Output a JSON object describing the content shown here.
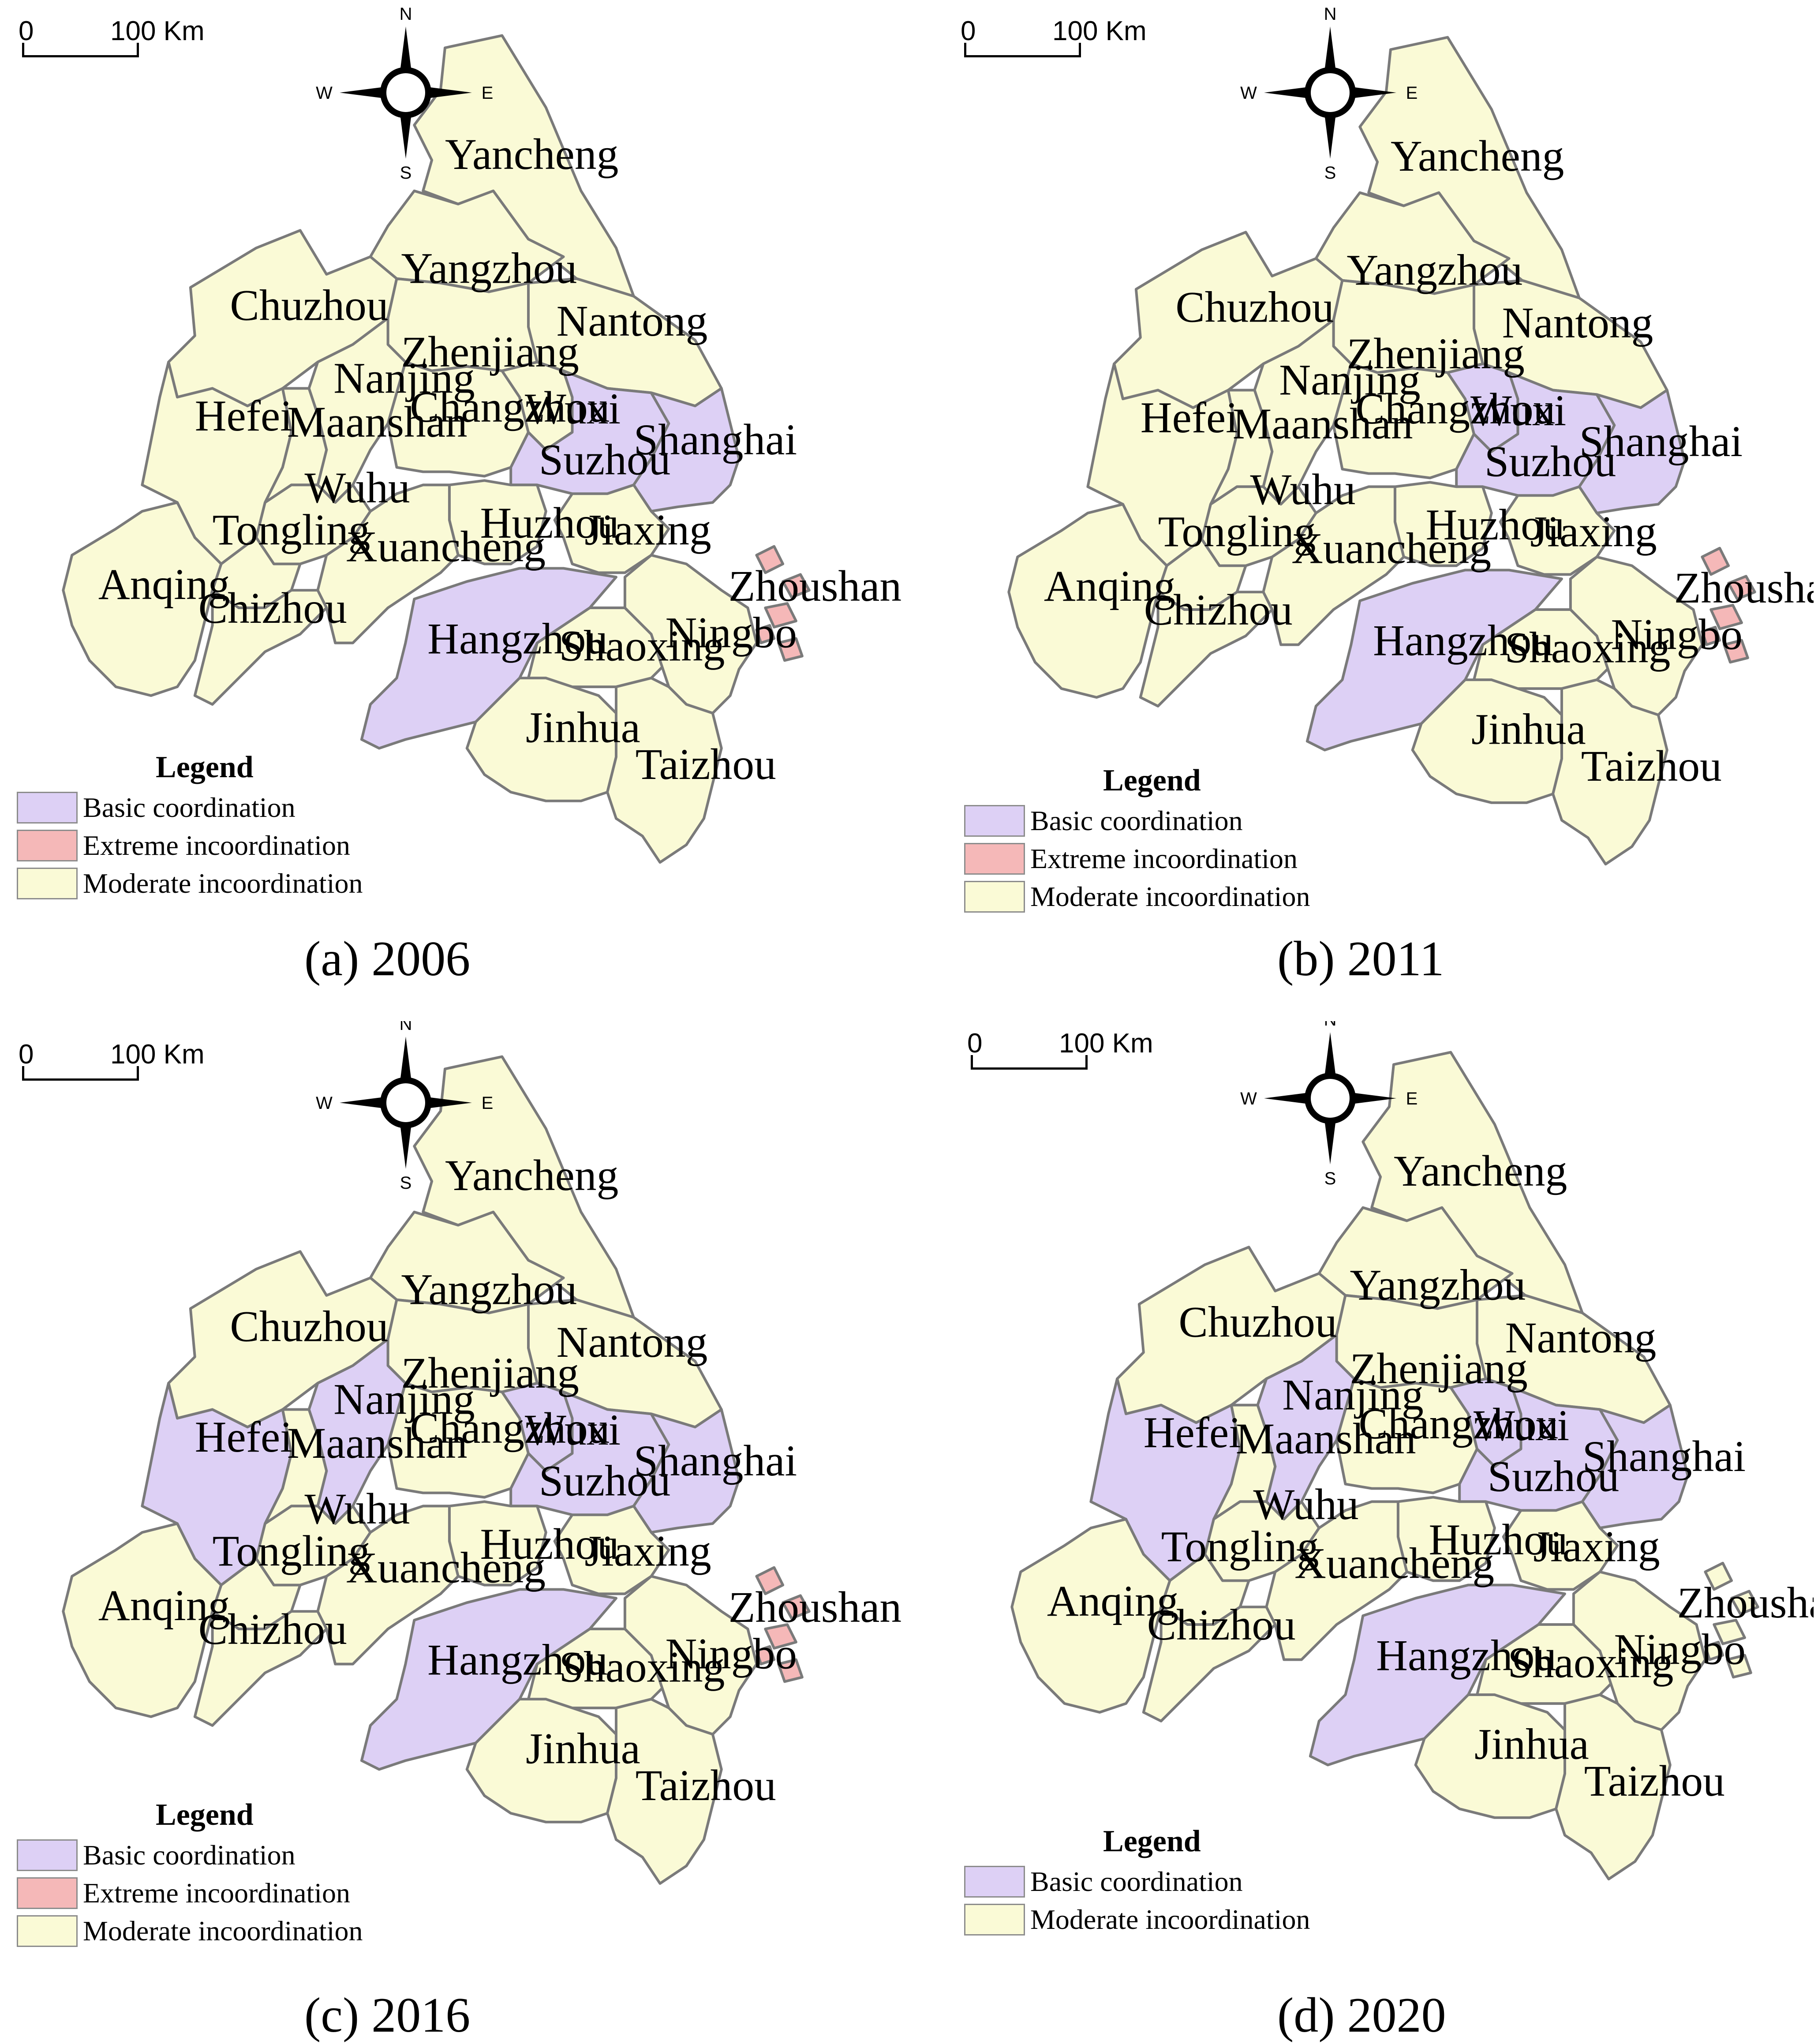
{
  "colors": {
    "basic_coordination": "#ddd0f5",
    "extreme_incoordination": "#f5b8b8",
    "moderate_incoordination": "#fafad6",
    "boundary": "#7a7a7a"
  },
  "scale": {
    "zero": "0",
    "distance": "100 Km"
  },
  "compass": {
    "north": "N",
    "south": "S",
    "east": "E",
    "west": "W"
  },
  "legend": {
    "title": "Legend",
    "basic": "Basic coordination",
    "extreme": "Extreme incoordination",
    "moderate": "Moderate incoordination"
  },
  "panels": [
    {
      "caption": "(a) 2006",
      "legend_classes": [
        "basic",
        "extreme",
        "moderate"
      ],
      "status": {
        "basic": [
          "Suzhou",
          "Shanghai",
          "Hangzhou"
        ],
        "extreme": [
          "Zhoushan"
        ]
      }
    },
    {
      "caption": "(b) 2011",
      "legend_classes": [
        "basic",
        "extreme",
        "moderate"
      ],
      "status": {
        "basic": [
          "Suzhou",
          "Wuxi",
          "Shanghai",
          "Hangzhou"
        ],
        "extreme": [
          "Zhoushan"
        ]
      }
    },
    {
      "caption": "(c) 2016",
      "legend_classes": [
        "basic",
        "extreme",
        "moderate"
      ],
      "status": {
        "basic": [
          "Hefei",
          "Nanjing",
          "Suzhou",
          "Wuxi",
          "Shanghai",
          "Hangzhou"
        ],
        "extreme": [
          "Zhoushan"
        ]
      }
    },
    {
      "caption": "(d) 2020",
      "legend_classes": [
        "basic",
        "moderate"
      ],
      "status": {
        "basic": [
          "Hefei",
          "Nanjing",
          "Suzhou",
          "Wuxi",
          "Shanghai",
          "Hangzhou"
        ],
        "extreme": []
      }
    }
  ],
  "cities": [
    "Yancheng",
    "Yangzhou",
    "Chuzhou",
    "Nantong",
    "Zhenjiang",
    "Nanjing",
    "Changzhou",
    "Wuxi",
    "Hefei",
    "Maanshan",
    "Suzhou",
    "Shanghai",
    "Wuhu",
    "Tongling",
    "Huzhou",
    "Jiaxing",
    "Xuancheng",
    "Anqing",
    "Chizhou",
    "Zhoushan",
    "Hangzhou",
    "Shaoxing",
    "Ningbo",
    "Jinhua",
    "Taizhou"
  ]
}
